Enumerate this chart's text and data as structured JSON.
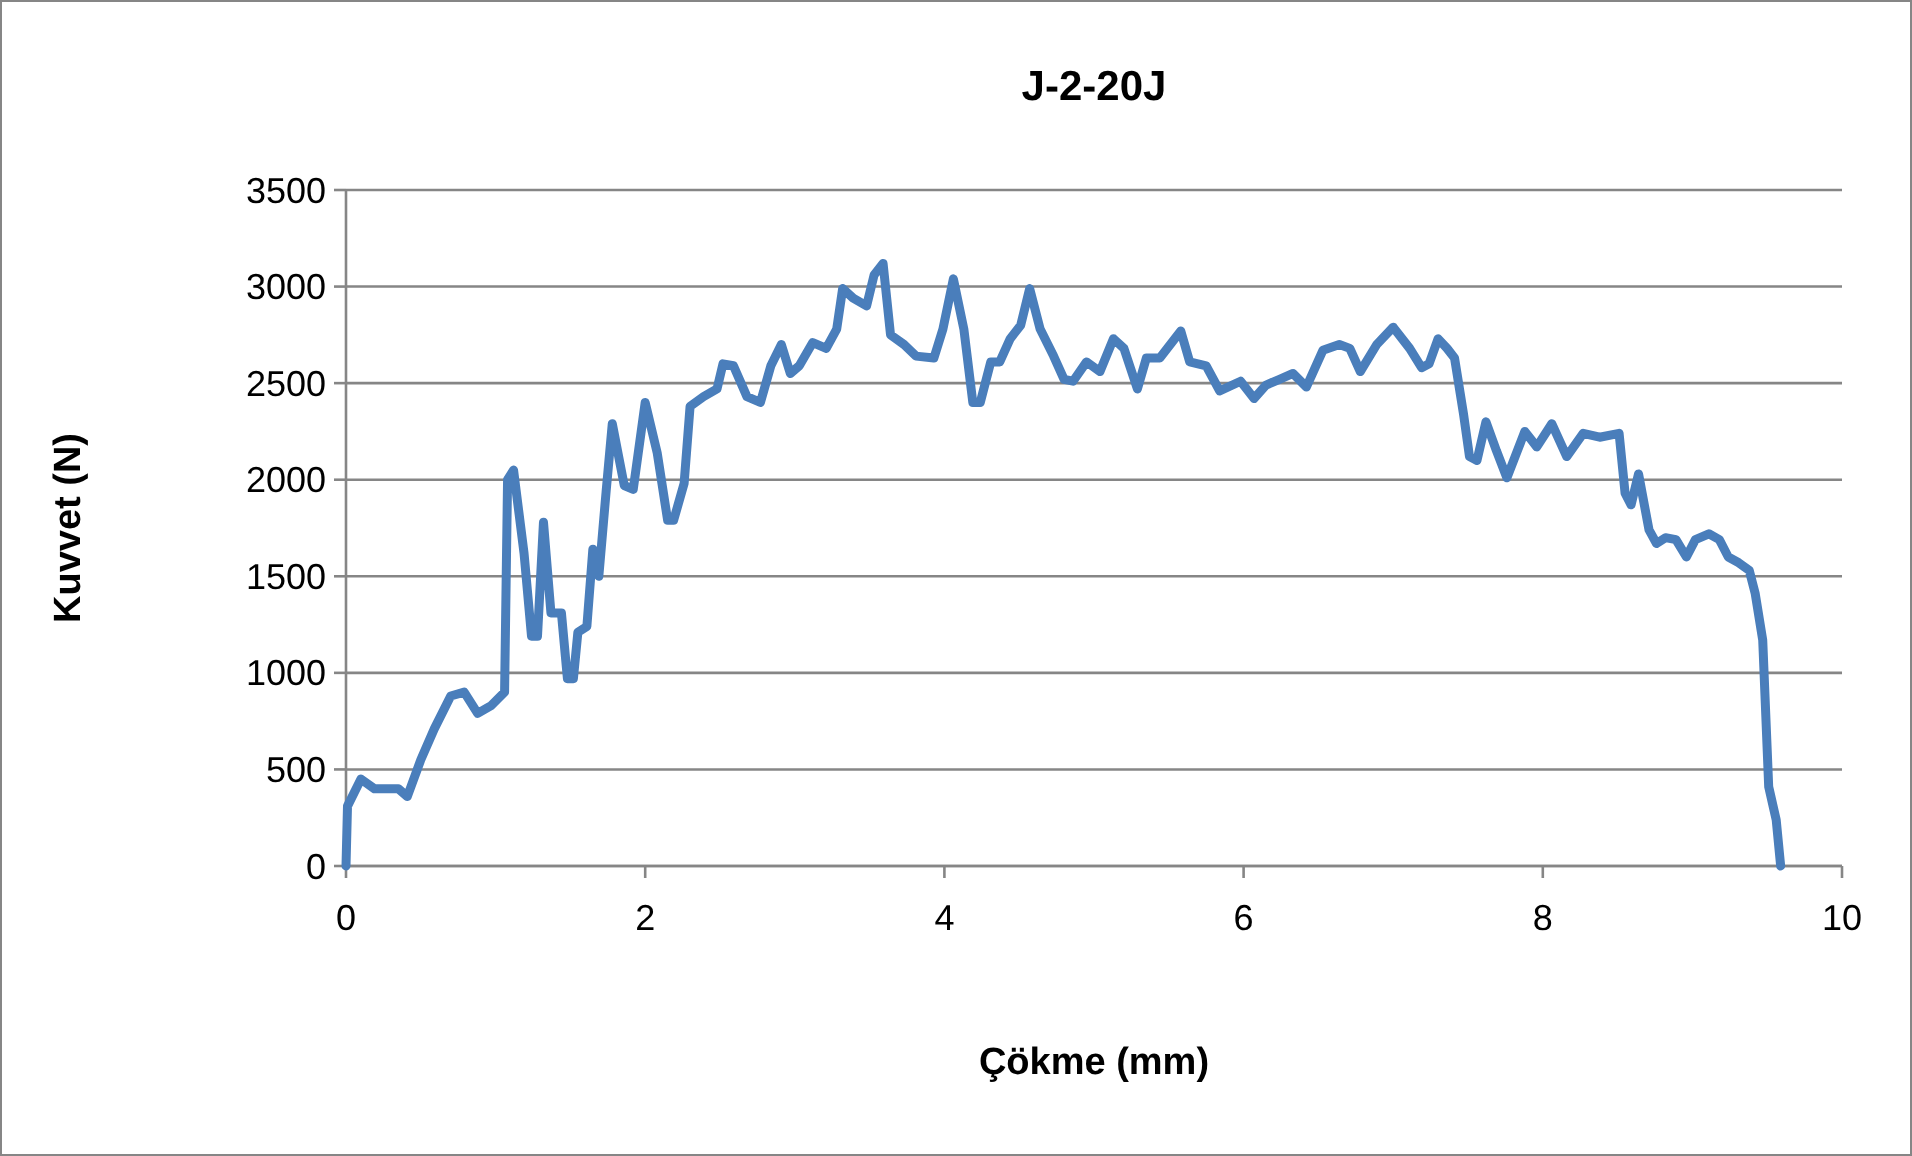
{
  "chart_data": {
    "type": "line",
    "title": "J-2-20J",
    "xlabel": "Çökme (mm)",
    "ylabel": "Kuvvet (N)",
    "xlim": [
      0,
      10
    ],
    "xticks": [
      0,
      2,
      4,
      6,
      8,
      10
    ],
    "ylim": [
      0,
      3500
    ],
    "yticks": [
      0,
      500,
      1000,
      1500,
      2000,
      2500,
      3000,
      3500
    ],
    "grid": "y",
    "marker": "none",
    "line_style": "solid",
    "series": [
      {
        "color": "#4a7ebb",
        "x": [
          0,
          0.01,
          0.1,
          0.19,
          0.35,
          0.41,
          0.5,
          0.59,
          0.7,
          0.79,
          0.88,
          0.97,
          1.06,
          1.08,
          1.12,
          1.19,
          1.24,
          1.28,
          1.32,
          1.37,
          1.44,
          1.48,
          1.52,
          1.55,
          1.61,
          1.65,
          1.69,
          1.74,
          1.78,
          1.86,
          1.92,
          2.0,
          2.08,
          2.15,
          2.19,
          2.26,
          2.3,
          2.39,
          2.48,
          2.52,
          2.59,
          2.68,
          2.77,
          2.84,
          2.91,
          2.97,
          3.03,
          3.12,
          3.21,
          3.28,
          3.32,
          3.39,
          3.48,
          3.53,
          3.59,
          3.64,
          3.73,
          3.81,
          3.93,
          3.99,
          4.06,
          4.13,
          4.19,
          4.24,
          4.31,
          4.37,
          4.44,
          4.51,
          4.57,
          4.64,
          4.73,
          4.8,
          4.86,
          4.95,
          5.04,
          5.13,
          5.2,
          5.29,
          5.35,
          5.44,
          5.51,
          5.58,
          5.64,
          5.75,
          5.84,
          5.98,
          6.07,
          6.15,
          6.24,
          6.33,
          6.42,
          6.53,
          6.64,
          6.71,
          6.78,
          6.89,
          7.0,
          7.11,
          7.19,
          7.24,
          7.3,
          7.36,
          7.41,
          7.47,
          7.51,
          7.56,
          7.62,
          7.69,
          7.76,
          7.82,
          7.88,
          7.96,
          8.06,
          8.16,
          8.27,
          8.38,
          8.51,
          8.55,
          8.59,
          8.64,
          8.71,
          8.76,
          8.82,
          8.89,
          8.96,
          9.02,
          9.11,
          9.18,
          9.24,
          9.31,
          9.38,
          9.42,
          9.47,
          9.51,
          9.56,
          9.59
        ],
        "values": [
          0,
          310,
          450,
          400,
          400,
          360,
          550,
          710,
          880,
          900,
          790,
          830,
          900,
          2000,
          2050,
          1620,
          1190,
          1190,
          1780,
          1310,
          1310,
          970,
          970,
          1210,
          1240,
          1640,
          1500,
          1950,
          2290,
          1970,
          1950,
          2400,
          2140,
          1790,
          1790,
          1980,
          2380,
          2430,
          2470,
          2600,
          2590,
          2430,
          2400,
          2590,
          2700,
          2550,
          2590,
          2710,
          2680,
          2780,
          2990,
          2940,
          2900,
          3060,
          3120,
          2750,
          2700,
          2640,
          2630,
          2780,
          3040,
          2780,
          2400,
          2400,
          2610,
          2610,
          2730,
          2800,
          2990,
          2780,
          2640,
          2520,
          2510,
          2610,
          2560,
          2730,
          2680,
          2470,
          2630,
          2630,
          2700,
          2770,
          2610,
          2590,
          2460,
          2510,
          2420,
          2490,
          2520,
          2550,
          2480,
          2670,
          2700,
          2680,
          2560,
          2700,
          2790,
          2680,
          2580,
          2600,
          2730,
          2680,
          2630,
          2340,
          2120,
          2100,
          2300,
          2150,
          2010,
          2130,
          2250,
          2170,
          2290,
          2120,
          2240,
          2220,
          2240,
          1930,
          1870,
          2030,
          1740,
          1670,
          1700,
          1690,
          1600,
          1690,
          1720,
          1690,
          1600,
          1570,
          1530,
          1410,
          1170,
          410,
          240,
          0
        ]
      }
    ]
  }
}
